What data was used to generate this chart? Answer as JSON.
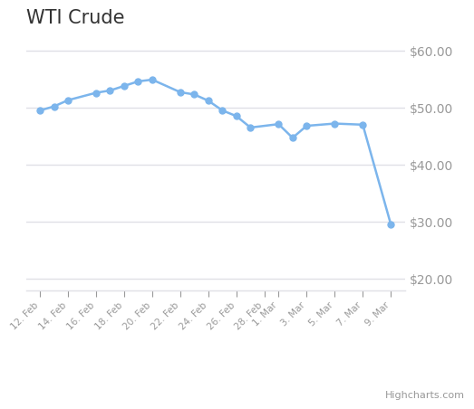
{
  "title": "WTI Crude",
  "labels": [
    "12. Feb",
    "14. Feb",
    "16. Feb",
    "18. Feb",
    "20. Feb",
    "22. Feb",
    "24. Feb",
    "26. Feb",
    "28. Feb",
    "1. Mar",
    "3. Mar",
    "5. Mar",
    "7. Mar",
    "9. Mar"
  ],
  "x_indices": [
    0,
    2,
    4,
    6,
    8,
    10,
    12,
    14,
    16,
    17,
    19,
    21,
    23,
    25
  ],
  "data_x": [
    0,
    1,
    2,
    4,
    5,
    6,
    7,
    8,
    10,
    11,
    12,
    13,
    14,
    15,
    17,
    18,
    19,
    21,
    23,
    25
  ],
  "values": [
    49.5,
    50.2,
    51.3,
    52.6,
    53.0,
    53.8,
    54.6,
    54.9,
    52.7,
    52.3,
    51.2,
    49.5,
    48.5,
    46.5,
    47.1,
    44.7,
    46.8,
    47.2,
    47.0,
    29.5
  ],
  "line_color": "#7cb5ec",
  "marker_color": "#7cb5ec",
  "bg_color": "#ffffff",
  "grid_color": "#e0e0e6",
  "axis_label_color": "#999999",
  "title_color": "#333333",
  "watermark": "Highcharts.com",
  "yticks": [
    20.0,
    30.0,
    40.0,
    50.0,
    60.0
  ],
  "ylim": [
    18.0,
    63.0
  ]
}
